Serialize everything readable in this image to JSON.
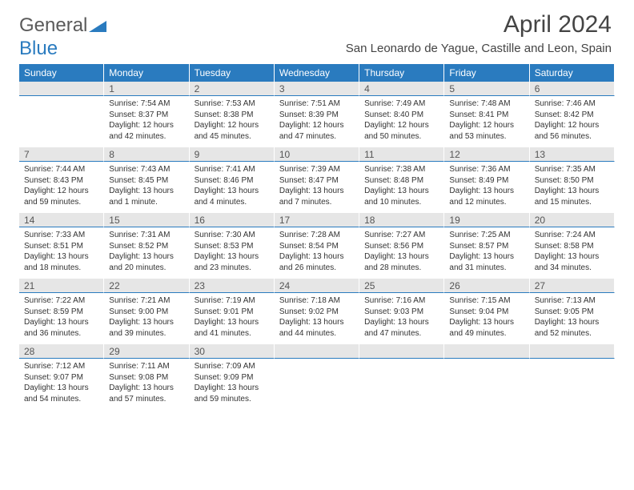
{
  "logo": {
    "part1": "General",
    "part2": "Blue"
  },
  "title": "April 2024",
  "subtitle": "San Leonardo de Yague, Castille and Leon, Spain",
  "colors": {
    "header_bg": "#2a7bbf",
    "header_fg": "#ffffff",
    "daynum_bg": "#e6e6e6",
    "daynum_border": "#2a7bbf",
    "text": "#333333",
    "logo_gray": "#5a5a5a",
    "logo_blue": "#2a7bbf"
  },
  "dayHeaders": [
    "Sunday",
    "Monday",
    "Tuesday",
    "Wednesday",
    "Thursday",
    "Friday",
    "Saturday"
  ],
  "weeks": [
    {
      "nums": [
        "",
        "1",
        "2",
        "3",
        "4",
        "5",
        "6"
      ],
      "cells": [
        {},
        {
          "sr": "Sunrise: 7:54 AM",
          "ss": "Sunset: 8:37 PM",
          "d1": "Daylight: 12 hours",
          "d2": "and 42 minutes."
        },
        {
          "sr": "Sunrise: 7:53 AM",
          "ss": "Sunset: 8:38 PM",
          "d1": "Daylight: 12 hours",
          "d2": "and 45 minutes."
        },
        {
          "sr": "Sunrise: 7:51 AM",
          "ss": "Sunset: 8:39 PM",
          "d1": "Daylight: 12 hours",
          "d2": "and 47 minutes."
        },
        {
          "sr": "Sunrise: 7:49 AM",
          "ss": "Sunset: 8:40 PM",
          "d1": "Daylight: 12 hours",
          "d2": "and 50 minutes."
        },
        {
          "sr": "Sunrise: 7:48 AM",
          "ss": "Sunset: 8:41 PM",
          "d1": "Daylight: 12 hours",
          "d2": "and 53 minutes."
        },
        {
          "sr": "Sunrise: 7:46 AM",
          "ss": "Sunset: 8:42 PM",
          "d1": "Daylight: 12 hours",
          "d2": "and 56 minutes."
        }
      ]
    },
    {
      "nums": [
        "7",
        "8",
        "9",
        "10",
        "11",
        "12",
        "13"
      ],
      "cells": [
        {
          "sr": "Sunrise: 7:44 AM",
          "ss": "Sunset: 8:43 PM",
          "d1": "Daylight: 12 hours",
          "d2": "and 59 minutes."
        },
        {
          "sr": "Sunrise: 7:43 AM",
          "ss": "Sunset: 8:45 PM",
          "d1": "Daylight: 13 hours",
          "d2": "and 1 minute."
        },
        {
          "sr": "Sunrise: 7:41 AM",
          "ss": "Sunset: 8:46 PM",
          "d1": "Daylight: 13 hours",
          "d2": "and 4 minutes."
        },
        {
          "sr": "Sunrise: 7:39 AM",
          "ss": "Sunset: 8:47 PM",
          "d1": "Daylight: 13 hours",
          "d2": "and 7 minutes."
        },
        {
          "sr": "Sunrise: 7:38 AM",
          "ss": "Sunset: 8:48 PM",
          "d1": "Daylight: 13 hours",
          "d2": "and 10 minutes."
        },
        {
          "sr": "Sunrise: 7:36 AM",
          "ss": "Sunset: 8:49 PM",
          "d1": "Daylight: 13 hours",
          "d2": "and 12 minutes."
        },
        {
          "sr": "Sunrise: 7:35 AM",
          "ss": "Sunset: 8:50 PM",
          "d1": "Daylight: 13 hours",
          "d2": "and 15 minutes."
        }
      ]
    },
    {
      "nums": [
        "14",
        "15",
        "16",
        "17",
        "18",
        "19",
        "20"
      ],
      "cells": [
        {
          "sr": "Sunrise: 7:33 AM",
          "ss": "Sunset: 8:51 PM",
          "d1": "Daylight: 13 hours",
          "d2": "and 18 minutes."
        },
        {
          "sr": "Sunrise: 7:31 AM",
          "ss": "Sunset: 8:52 PM",
          "d1": "Daylight: 13 hours",
          "d2": "and 20 minutes."
        },
        {
          "sr": "Sunrise: 7:30 AM",
          "ss": "Sunset: 8:53 PM",
          "d1": "Daylight: 13 hours",
          "d2": "and 23 minutes."
        },
        {
          "sr": "Sunrise: 7:28 AM",
          "ss": "Sunset: 8:54 PM",
          "d1": "Daylight: 13 hours",
          "d2": "and 26 minutes."
        },
        {
          "sr": "Sunrise: 7:27 AM",
          "ss": "Sunset: 8:56 PM",
          "d1": "Daylight: 13 hours",
          "d2": "and 28 minutes."
        },
        {
          "sr": "Sunrise: 7:25 AM",
          "ss": "Sunset: 8:57 PM",
          "d1": "Daylight: 13 hours",
          "d2": "and 31 minutes."
        },
        {
          "sr": "Sunrise: 7:24 AM",
          "ss": "Sunset: 8:58 PM",
          "d1": "Daylight: 13 hours",
          "d2": "and 34 minutes."
        }
      ]
    },
    {
      "nums": [
        "21",
        "22",
        "23",
        "24",
        "25",
        "26",
        "27"
      ],
      "cells": [
        {
          "sr": "Sunrise: 7:22 AM",
          "ss": "Sunset: 8:59 PM",
          "d1": "Daylight: 13 hours",
          "d2": "and 36 minutes."
        },
        {
          "sr": "Sunrise: 7:21 AM",
          "ss": "Sunset: 9:00 PM",
          "d1": "Daylight: 13 hours",
          "d2": "and 39 minutes."
        },
        {
          "sr": "Sunrise: 7:19 AM",
          "ss": "Sunset: 9:01 PM",
          "d1": "Daylight: 13 hours",
          "d2": "and 41 minutes."
        },
        {
          "sr": "Sunrise: 7:18 AM",
          "ss": "Sunset: 9:02 PM",
          "d1": "Daylight: 13 hours",
          "d2": "and 44 minutes."
        },
        {
          "sr": "Sunrise: 7:16 AM",
          "ss": "Sunset: 9:03 PM",
          "d1": "Daylight: 13 hours",
          "d2": "and 47 minutes."
        },
        {
          "sr": "Sunrise: 7:15 AM",
          "ss": "Sunset: 9:04 PM",
          "d1": "Daylight: 13 hours",
          "d2": "and 49 minutes."
        },
        {
          "sr": "Sunrise: 7:13 AM",
          "ss": "Sunset: 9:05 PM",
          "d1": "Daylight: 13 hours",
          "d2": "and 52 minutes."
        }
      ]
    },
    {
      "nums": [
        "28",
        "29",
        "30",
        "",
        "",
        "",
        ""
      ],
      "cells": [
        {
          "sr": "Sunrise: 7:12 AM",
          "ss": "Sunset: 9:07 PM",
          "d1": "Daylight: 13 hours",
          "d2": "and 54 minutes."
        },
        {
          "sr": "Sunrise: 7:11 AM",
          "ss": "Sunset: 9:08 PM",
          "d1": "Daylight: 13 hours",
          "d2": "and 57 minutes."
        },
        {
          "sr": "Sunrise: 7:09 AM",
          "ss": "Sunset: 9:09 PM",
          "d1": "Daylight: 13 hours",
          "d2": "and 59 minutes."
        },
        {},
        {},
        {},
        {}
      ]
    }
  ]
}
